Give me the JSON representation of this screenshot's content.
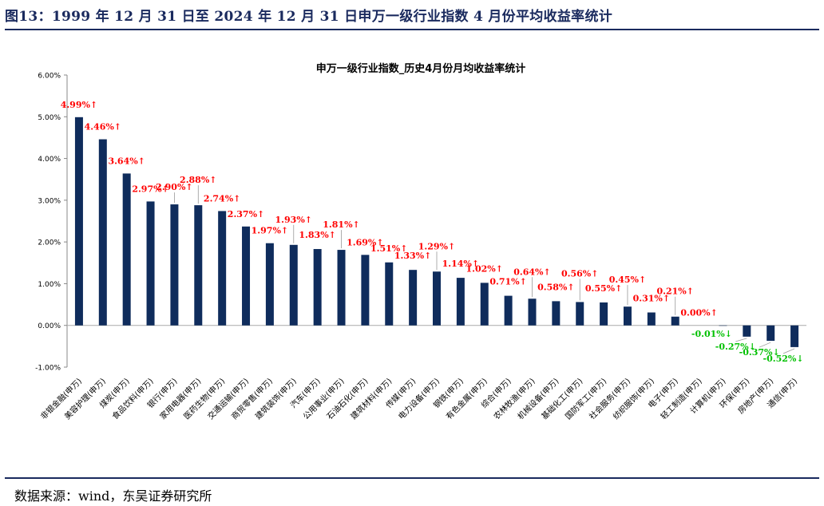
{
  "figure_title": "图13：1999 年 12 月 31 日至 2024 年 12 月 31 日申万一级行业指数 4 月份平均收益率统计",
  "source_text": "数据来源：wind，东吴证券研究所",
  "colors": {
    "bar": "#0f2c5c",
    "positive_label": "#ff0000",
    "negative_label": "#00c000",
    "rule": "#1a2a5e"
  },
  "chart_data": {
    "type": "bar",
    "title": "申万一级行业指数_历史4月份月均收益率统计",
    "xlabel": "",
    "ylabel": "",
    "ylim": [
      -1.0,
      6.0
    ],
    "yticks": [
      -1,
      0,
      1,
      2,
      3,
      4,
      5,
      6
    ],
    "ytick_labels": [
      "-1.00%",
      "0.00%",
      "1.00%",
      "2.00%",
      "3.00%",
      "4.00%",
      "5.00%",
      "6.00%"
    ],
    "categories": [
      "非银金融(申万)",
      "美容护理(申万)",
      "煤炭(申万)",
      "食品饮料(申万)",
      "银行(申万)",
      "家用电器(申万)",
      "医药生物(申万)",
      "交通运输(申万)",
      "商贸零售(申万)",
      "建筑装饰(申万)",
      "汽车(申万)",
      "公用事业(申万)",
      "石油石化(申万)",
      "建筑材料(申万)",
      "传媒(申万)",
      "电力设备(申万)",
      "钢铁(申万)",
      "有色金属(申万)",
      "综合(申万)",
      "农林牧渔(申万)",
      "机械设备(申万)",
      "基础化工(申万)",
      "国防军工(申万)",
      "社会服务(申万)",
      "纺织服饰(申万)",
      "电子(申万)",
      "轻工制造(申万)",
      "计算机(申万)",
      "环保(申万)",
      "房地产(申万)",
      "通信(申万)"
    ],
    "values": [
      4.99,
      4.46,
      3.64,
      2.97,
      2.9,
      2.88,
      2.74,
      2.37,
      1.97,
      1.93,
      1.83,
      1.81,
      1.69,
      1.51,
      1.33,
      1.29,
      1.14,
      1.02,
      0.71,
      0.64,
      0.58,
      0.56,
      0.55,
      0.45,
      0.31,
      0.21,
      0.0,
      -0.01,
      -0.27,
      -0.37,
      -0.52
    ],
    "data_labels": [
      "4.99%↑",
      "4.46%↑",
      "3.64%↑",
      "2.97%↑",
      "2.90%↑",
      "2.88%↑",
      "2.74%↑",
      "2.37%↑",
      "1.97%↑",
      "1.93%↑",
      "1.83%↑",
      "1.81%↑",
      "1.69%↑",
      "1.51%↑",
      "1.33%↑",
      "1.29%↑",
      "1.14%↑",
      "1.02%↑",
      "0.71%↑",
      "0.64%↑",
      "0.58%↑",
      "0.56%↑",
      "0.55%↑",
      "0.45%↑",
      "0.31%↑",
      "0.21%↑",
      "0.00%↑",
      "-0.01%↓",
      "-0.27%↓",
      "-0.37%↓",
      "-0.52%↓"
    ],
    "grid": false,
    "legend": "none"
  }
}
